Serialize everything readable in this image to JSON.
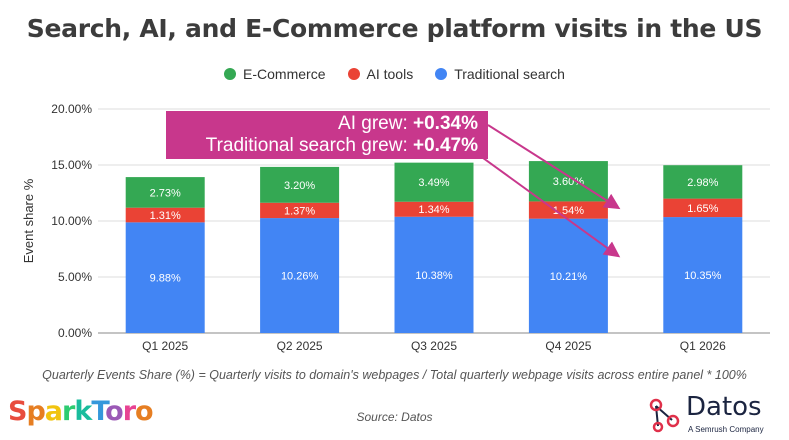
{
  "title": "Search, AI, and E-Commerce platform visits in the US",
  "callout": {
    "line1_text": "AI grew: ",
    "line1_value": "+0.34%",
    "line2_text": "Traditional search grew: ",
    "line2_value": "+0.47%"
  },
  "formula": "Quarterly Events Share (%) = Quarterly visits to domain's webpages / Total quarterly webpage visits across entire panel * 100%",
  "source": "Source: Datos",
  "logos": {
    "sparktoro": [
      "S",
      "p",
      "a",
      "r",
      "k",
      "T",
      "o",
      "r",
      "o"
    ],
    "sparktoro_colors": [
      "#e84c3d",
      "#e67e22",
      "#f1c40f",
      "#2ecc71",
      "#1abc9c",
      "#3498db",
      "#9b59b6",
      "#e84393",
      "#e67e22"
    ],
    "datos_name": "Datos",
    "datos_sub": "A Semrush Company"
  },
  "chart_data": {
    "type": "bar",
    "stacked": true,
    "categories": [
      "Q1 2025",
      "Q2 2025",
      "Q3 2025",
      "Q4 2025",
      "Q1 2026"
    ],
    "ylabel": "Event share %",
    "xlabel": "",
    "ylim": [
      0,
      20
    ],
    "yticks": [
      "0.00%",
      "5.00%",
      "10.00%",
      "15.00%",
      "20.00%"
    ],
    "grid": true,
    "legend_position": "top",
    "series": [
      {
        "name": "Traditional search",
        "color": "#4285f4",
        "values": [
          9.88,
          10.26,
          10.38,
          10.21,
          10.35
        ],
        "labels": [
          "9.88%",
          "10.26%",
          "10.38%",
          "10.21%",
          "10.35%"
        ]
      },
      {
        "name": "AI tools",
        "color": "#ea4335",
        "values": [
          1.31,
          1.37,
          1.34,
          1.54,
          1.65
        ],
        "labels": [
          "1.31%",
          "1.37%",
          "1.34%",
          "1.54%",
          "1.65%"
        ]
      },
      {
        "name": "E-Commerce",
        "color": "#34a853",
        "values": [
          2.73,
          3.2,
          3.49,
          3.6,
          2.98
        ],
        "labels": [
          "2.73%",
          "3.20%",
          "3.49%",
          "3.60%",
          "2.98%"
        ]
      }
    ],
    "legend_order": [
      "E-Commerce",
      "AI tools",
      "Traditional search"
    ]
  }
}
